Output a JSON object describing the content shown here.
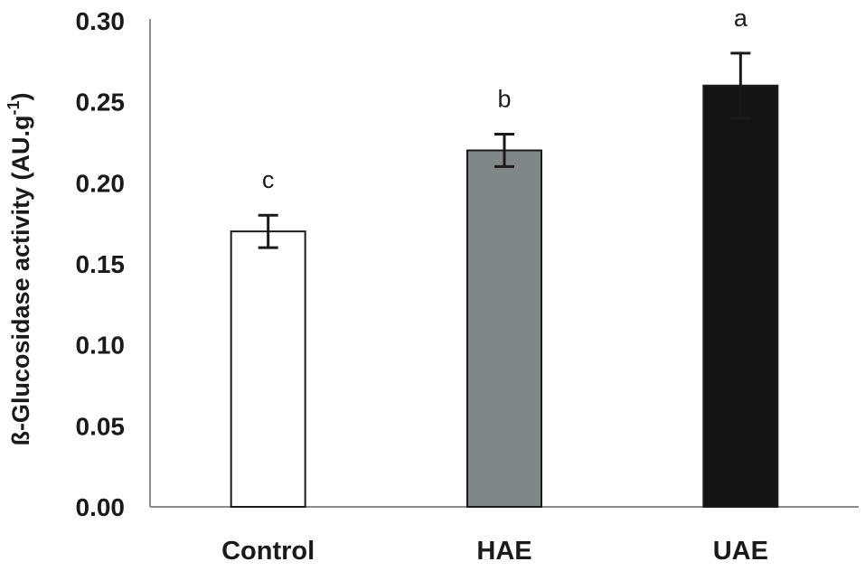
{
  "chart_data": {
    "type": "bar",
    "categories": [
      "Control",
      "HAE",
      "UAE"
    ],
    "values": [
      0.17,
      0.22,
      0.26
    ],
    "errors": [
      0.01,
      0.01,
      0.02
    ],
    "significance_letters": [
      "c",
      "b",
      "a"
    ],
    "bar_colors": [
      "#ffffff",
      "#7f8789",
      "#141414"
    ],
    "title": "",
    "xlabel": "",
    "ylabel_main": "ß-Glucosidase activity (AU.g",
    "ylabel_sup": "-1",
    "ylabel_close": ")",
    "ylim": [
      0,
      0.3
    ],
    "yticks": [
      "0.00",
      "0.05",
      "0.10",
      "0.15",
      "0.20",
      "0.25",
      "0.30"
    ],
    "grid": false,
    "legend": "none"
  }
}
